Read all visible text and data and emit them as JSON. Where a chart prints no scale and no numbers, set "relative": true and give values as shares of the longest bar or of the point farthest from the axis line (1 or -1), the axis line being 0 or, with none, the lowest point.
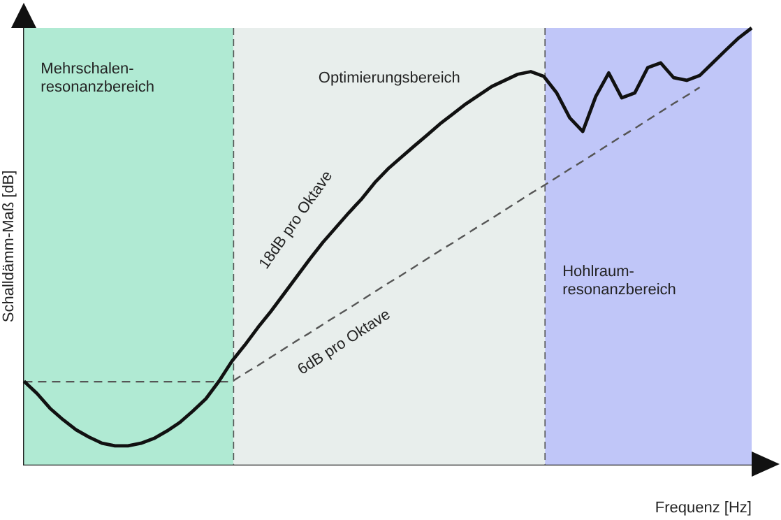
{
  "chart_data": {
    "type": "line",
    "relative": true,
    "xlabel": "Frequenz [Hz]",
    "ylabel": "Schalldämm-Maß [dB]",
    "legend": false,
    "marker": "none",
    "categories": [
      null,
      null,
      null,
      null,
      null,
      null,
      null,
      null,
      null,
      null,
      null,
      null,
      null,
      null,
      null,
      null,
      null,
      null,
      null,
      null,
      null,
      null,
      null,
      null,
      null,
      null,
      null,
      null,
      null,
      null,
      null,
      null,
      null,
      null,
      null,
      null,
      null,
      null,
      null,
      null,
      null,
      null,
      null,
      null,
      null,
      null,
      null,
      null,
      null,
      null,
      null,
      null,
      null,
      null,
      null,
      null,
      null
    ],
    "series": [
      {
        "color": "#111111",
        "line_style": "solid",
        "values": [
          0.191,
          0.163,
          0.129,
          0.103,
          0.08,
          0.063,
          0.049,
          0.043,
          0.043,
          0.049,
          0.06,
          0.077,
          0.097,
          0.123,
          0.151,
          0.191,
          0.237,
          0.274,
          0.314,
          0.351,
          0.391,
          0.431,
          0.471,
          0.509,
          0.543,
          0.577,
          0.609,
          0.646,
          0.677,
          0.703,
          0.729,
          0.754,
          0.78,
          0.803,
          0.826,
          0.846,
          0.866,
          0.88,
          0.894,
          0.9,
          0.889,
          0.851,
          0.794,
          0.763,
          0.843,
          0.897,
          0.84,
          0.851,
          0.909,
          0.92,
          0.886,
          0.88,
          0.891,
          0.92,
          0.949,
          0.977,
          1
        ]
      },
      {
        "color": "#555555",
        "line_style": "dashed",
        "values": [
          0.19,
          0.19,
          0.19,
          0.19,
          0.19,
          0.19,
          0.19,
          0.19,
          0.19,
          0.19,
          0.19,
          0.19,
          0.19,
          0.19,
          0.19,
          0.19,
          0.19,
          0.209,
          0.227,
          0.246,
          0.265,
          0.284,
          0.302,
          0.321,
          0.34,
          0.358,
          0.377,
          0.396,
          0.415,
          0.433,
          0.452,
          0.471,
          0.49,
          0.508,
          0.527,
          0.546,
          0.564,
          0.583,
          0.602,
          0.621,
          0.639,
          0.658,
          0.677,
          0.695,
          0.714,
          0.733,
          0.752,
          0.77,
          0.789,
          0.808,
          0.827,
          0.845,
          0.864,
          null,
          null,
          null,
          null
        ]
      }
    ],
    "annotations": [
      "Mehrschalen-\nresonanzbereich",
      "Optimierungsbereich",
      "Hohlraum-\nresonanzbereich",
      "18dB pro Oktave",
      "6dB pro Oktave"
    ]
  }
}
